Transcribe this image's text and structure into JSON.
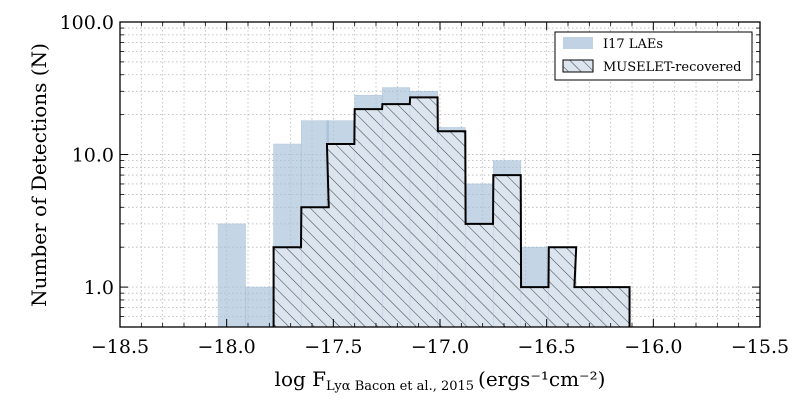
{
  "chart_data": {
    "type": "histogram",
    "xlabel_main": "log F",
    "xlabel_sub": "Lyα Bacon et al., 2015",
    "xlabel_units": "(ergs⁻¹cm⁻²)",
    "ylabel": "Number of Detections (N)",
    "xlim": [
      -18.5,
      -15.5
    ],
    "ylim": [
      0.5,
      100
    ],
    "yscale": "log",
    "x_ticks": [
      -18.5,
      -18.0,
      -17.5,
      -17.0,
      -16.5,
      -16.0,
      -15.5
    ],
    "x_tick_labels": [
      "−18.5",
      "−18.0",
      "−17.5",
      "−17.0",
      "−16.5",
      "−16.0",
      "−15.5"
    ],
    "y_ticks": [
      1,
      10,
      100
    ],
    "y_tick_labels": [
      "1.0",
      "10.0",
      "100.0"
    ],
    "grid": true,
    "legend_position": "top-right",
    "bin_width": 0.1285,
    "series": [
      {
        "name": "I17 LAEs",
        "style": "filled",
        "color": "#a6bfd8",
        "bins": [
          {
            "x0": -18.04,
            "count": 3
          },
          {
            "x0": -17.91,
            "count": 1
          },
          {
            "x0": -17.78,
            "count": 12
          },
          {
            "x0": -17.65,
            "count": 18
          },
          {
            "x0": -17.53,
            "count": 18
          },
          {
            "x0": -17.4,
            "count": 28
          },
          {
            "x0": -17.27,
            "count": 32
          },
          {
            "x0": -17.14,
            "count": 30
          },
          {
            "x0": -17.01,
            "count": 16
          },
          {
            "x0": -16.88,
            "count": 6
          },
          {
            "x0": -16.75,
            "count": 9
          },
          {
            "x0": -16.62,
            "count": 2
          },
          {
            "x0": -16.49,
            "count": 2
          },
          {
            "x0": -16.37,
            "count": 1
          },
          {
            "x0": -16.24,
            "count": 1
          }
        ]
      },
      {
        "name": "MUSELET-recovered",
        "style": "hatched",
        "color": "#000000",
        "bins": [
          {
            "x0": -17.78,
            "count": 2
          },
          {
            "x0": -17.65,
            "count": 4
          },
          {
            "x0": -17.53,
            "count": 12
          },
          {
            "x0": -17.4,
            "count": 22
          },
          {
            "x0": -17.27,
            "count": 24
          },
          {
            "x0": -17.14,
            "count": 27
          },
          {
            "x0": -17.01,
            "count": 15
          },
          {
            "x0": -16.88,
            "count": 3
          },
          {
            "x0": -16.75,
            "count": 7
          },
          {
            "x0": -16.62,
            "count": 1
          },
          {
            "x0": -16.49,
            "count": 2
          },
          {
            "x0": -16.37,
            "count": 1
          },
          {
            "x0": -16.24,
            "count": 1
          }
        ]
      }
    ]
  }
}
